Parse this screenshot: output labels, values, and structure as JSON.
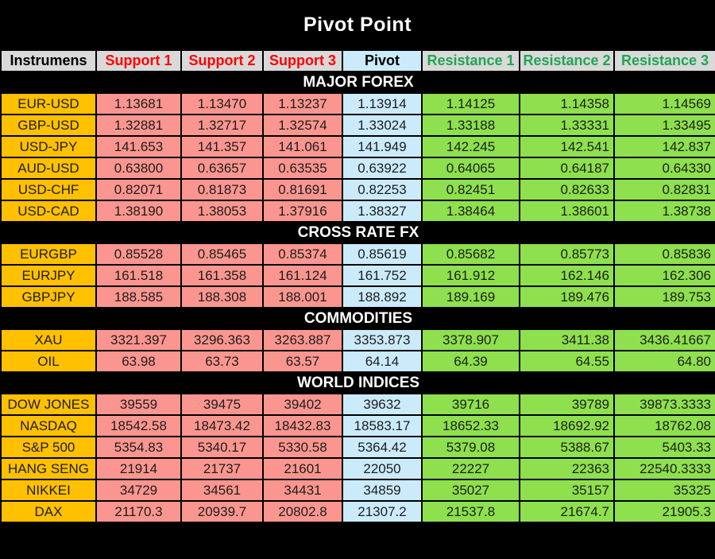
{
  "title": "Pivot Point",
  "colors": {
    "banner_bg": "#000000",
    "header_bg": "#D9D9D9",
    "instrument_bg": "#FFC000",
    "support_bg": "#FA968F",
    "pivot_bg": "#CBEBFB",
    "resistance_bg": "#8EE04E",
    "support_text": "#FF0000",
    "resistance_text": "#1EA653"
  },
  "columns": [
    {
      "key": "instrument",
      "label": "Instrumens"
    },
    {
      "key": "support1",
      "label": "Support 1"
    },
    {
      "key": "support2",
      "label": "Support 2"
    },
    {
      "key": "support3",
      "label": "Support 3"
    },
    {
      "key": "pivot",
      "label": "Pivot"
    },
    {
      "key": "resistance1",
      "label": "Resistance 1"
    },
    {
      "key": "resistance2",
      "label": "Resistance 2"
    },
    {
      "key": "resistance3",
      "label": "Resistance 3"
    }
  ],
  "sections": [
    {
      "name": "MAJOR FOREX",
      "rows": [
        {
          "instrument": "EUR-USD",
          "values": [
            "1.13681",
            "1.13470",
            "1.13237",
            "1.13914",
            "1.14125",
            "1.14358",
            "1.14569"
          ]
        },
        {
          "instrument": "GBP-USD",
          "values": [
            "1.32881",
            "1.32717",
            "1.32574",
            "1.33024",
            "1.33188",
            "1.33331",
            "1.33495"
          ]
        },
        {
          "instrument": "USD-JPY",
          "values": [
            "141.653",
            "141.357",
            "141.061",
            "141.949",
            "142.245",
            "142.541",
            "142.837"
          ]
        },
        {
          "instrument": "AUD-USD",
          "values": [
            "0.63800",
            "0.63657",
            "0.63535",
            "0.63922",
            "0.64065",
            "0.64187",
            "0.64330"
          ]
        },
        {
          "instrument": "USD-CHF",
          "values": [
            "0.82071",
            "0.81873",
            "0.81691",
            "0.82253",
            "0.82451",
            "0.82633",
            "0.82831"
          ]
        },
        {
          "instrument": "USD-CAD",
          "values": [
            "1.38190",
            "1.38053",
            "1.37916",
            "1.38327",
            "1.38464",
            "1.38601",
            "1.38738"
          ]
        }
      ]
    },
    {
      "name": "CROSS RATE FX",
      "rows": [
        {
          "instrument": "EURGBP",
          "values": [
            "0.85528",
            "0.85465",
            "0.85374",
            "0.85619",
            "0.85682",
            "0.85773",
            "0.85836"
          ]
        },
        {
          "instrument": "EURJPY",
          "values": [
            "161.518",
            "161.358",
            "161.124",
            "161.752",
            "161.912",
            "162.146",
            "162.306"
          ]
        },
        {
          "instrument": "GBPJPY",
          "values": [
            "188.585",
            "188.308",
            "188.001",
            "188.892",
            "189.169",
            "189.476",
            "189.753"
          ]
        }
      ]
    },
    {
      "name": "COMMODITIES",
      "rows": [
        {
          "instrument": "XAU",
          "values": [
            "3321.397",
            "3296.363",
            "3263.887",
            "3353.873",
            "3378.907",
            "3411.38",
            "3436.41667"
          ]
        },
        {
          "instrument": "OIL",
          "values": [
            "63.98",
            "63.73",
            "63.57",
            "64.14",
            "64.39",
            "64.55",
            "64.80"
          ]
        }
      ]
    },
    {
      "name": "WORLD INDICES",
      "rows": [
        {
          "instrument": "DOW JONES",
          "values": [
            "39559",
            "39475",
            "39402",
            "39632",
            "39716",
            "39789",
            "39873.3333"
          ]
        },
        {
          "instrument": "NASDAQ",
          "values": [
            "18542.58",
            "18473.42",
            "18432.83",
            "18583.17",
            "18652.33",
            "18692.92",
            "18762.08"
          ]
        },
        {
          "instrument": "S&P 500",
          "values": [
            "5354.83",
            "5340.17",
            "5330.58",
            "5364.42",
            "5379.08",
            "5388.67",
            "5403.33"
          ]
        },
        {
          "instrument": "HANG SENG",
          "values": [
            "21914",
            "21737",
            "21601",
            "22050",
            "22227",
            "22363",
            "22540.3333"
          ]
        },
        {
          "instrument": "NIKKEI",
          "values": [
            "34729",
            "34561",
            "34431",
            "34859",
            "35027",
            "35157",
            "35325"
          ]
        },
        {
          "instrument": "DAX",
          "values": [
            "21170.3",
            "20939.7",
            "20802.8",
            "21307.2",
            "21537.8",
            "21674.7",
            "21905.3"
          ]
        }
      ]
    }
  ]
}
